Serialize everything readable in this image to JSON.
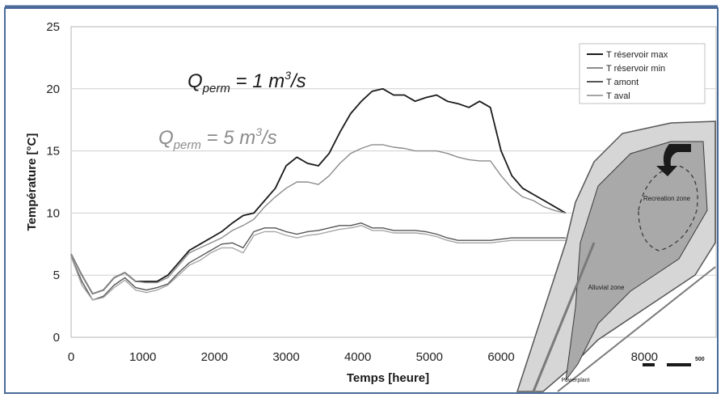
{
  "chart_data": {
    "type": "line",
    "xlabel": "Temps [heure]",
    "ylabel": "Température [°C]",
    "xlim": [
      0,
      9000
    ],
    "ylim": [
      0,
      25
    ],
    "xticks": [
      0,
      1000,
      2000,
      3000,
      4000,
      5000,
      6000,
      8000
    ],
    "yticks": [
      0,
      5,
      10,
      15,
      20,
      25
    ],
    "grid": "horizontal",
    "legend_position": "top-right",
    "annotations": [
      {
        "base": "Q",
        "sub": "perm",
        "eq": " = 1 m",
        "sup": "3",
        "tail": "/s",
        "color": "#1a1a1a"
      },
      {
        "base": "Q",
        "sub": "perm",
        "eq": " = 5 m",
        "sup": "3",
        "tail": "/s",
        "color": "#8c8c8c"
      }
    ],
    "inset_map": {
      "labels": [
        "Recreation zone",
        "Alluvial zone",
        "Powerplant"
      ],
      "scale_label": "500"
    },
    "series": [
      {
        "name": "T réservoir max",
        "color": "#1a1a1a",
        "x": [
          0,
          150,
          300,
          450,
          600,
          750,
          900,
          1050,
          1200,
          1350,
          1500,
          1650,
          1800,
          1950,
          2100,
          2250,
          2400,
          2550,
          2700,
          2850,
          3000,
          3150,
          3300,
          3450,
          3600,
          3750,
          3900,
          4050,
          4200,
          4350,
          4500,
          4650,
          4800,
          4950,
          5100,
          5250,
          5400,
          5550,
          5700,
          5850,
          6000,
          6150,
          6300,
          6450,
          6600,
          6750,
          6900
        ],
        "y": [
          6.7,
          5.0,
          3.5,
          3.8,
          4.8,
          5.2,
          4.5,
          4.5,
          4.5,
          5.0,
          6.0,
          7.0,
          7.5,
          8.0,
          8.5,
          9.2,
          9.8,
          10.0,
          11.0,
          12.0,
          13.8,
          14.5,
          14.0,
          13.8,
          14.8,
          16.5,
          18.0,
          19.0,
          19.8,
          20.0,
          19.5,
          19.5,
          19.0,
          19.3,
          19.5,
          19.0,
          18.8,
          18.5,
          19.0,
          18.5,
          15.0,
          13.0,
          12.0,
          11.5,
          11.0,
          10.5,
          10.0
        ]
      },
      {
        "name": "T réservoir min",
        "color": "#8c8c8c",
        "x": [
          0,
          150,
          300,
          450,
          600,
          750,
          900,
          1050,
          1200,
          1350,
          1500,
          1650,
          1800,
          1950,
          2100,
          2250,
          2400,
          2550,
          2700,
          2850,
          3000,
          3150,
          3300,
          3450,
          3600,
          3750,
          3900,
          4050,
          4200,
          4350,
          4500,
          4650,
          4800,
          4950,
          5100,
          5250,
          5400,
          5550,
          5700,
          5850,
          6000,
          6150,
          6300,
          6450,
          6600,
          6750,
          6900
        ],
        "y": [
          6.7,
          5.0,
          3.5,
          3.8,
          4.8,
          5.2,
          4.5,
          4.4,
          4.4,
          4.8,
          5.8,
          6.8,
          7.2,
          7.6,
          8.0,
          8.6,
          9.0,
          9.5,
          10.5,
          11.3,
          12.0,
          12.5,
          12.5,
          12.3,
          13.0,
          14.0,
          14.8,
          15.2,
          15.5,
          15.5,
          15.3,
          15.2,
          15.0,
          15.0,
          15.0,
          14.8,
          14.5,
          14.3,
          14.2,
          14.2,
          13.0,
          12.0,
          11.3,
          11.0,
          10.5,
          10.2,
          10.0
        ]
      },
      {
        "name": "T amont",
        "color": "#555555",
        "x": [
          0,
          150,
          300,
          450,
          600,
          750,
          900,
          1050,
          1200,
          1350,
          1500,
          1650,
          1800,
          1950,
          2100,
          2250,
          2400,
          2550,
          2700,
          2850,
          3000,
          3150,
          3300,
          3450,
          3600,
          3750,
          3900,
          4050,
          4200,
          4350,
          4500,
          4650,
          4800,
          4950,
          5100,
          5250,
          5400,
          5550,
          5700,
          5850,
          6000,
          6150,
          6300,
          6450,
          6600,
          6750,
          6900
        ],
        "y": [
          6.5,
          4.5,
          3.0,
          3.3,
          4.2,
          4.8,
          4.0,
          3.8,
          4.0,
          4.3,
          5.2,
          6.0,
          6.5,
          7.0,
          7.5,
          7.6,
          7.2,
          8.5,
          8.8,
          8.8,
          8.5,
          8.3,
          8.5,
          8.6,
          8.8,
          9.0,
          9.0,
          9.2,
          8.8,
          8.8,
          8.6,
          8.6,
          8.6,
          8.5,
          8.3,
          8.0,
          7.8,
          7.8,
          7.8,
          7.8,
          7.9,
          8.0,
          8.0,
          8.0,
          8.0,
          8.0,
          8.0
        ]
      },
      {
        "name": "T aval",
        "color": "#a6a6a6",
        "x": [
          0,
          150,
          300,
          450,
          600,
          750,
          900,
          1050,
          1200,
          1350,
          1500,
          1650,
          1800,
          1950,
          2100,
          2250,
          2400,
          2550,
          2700,
          2850,
          3000,
          3150,
          3300,
          3450,
          3600,
          3750,
          3900,
          4050,
          4200,
          4350,
          4500,
          4650,
          4800,
          4950,
          5100,
          5250,
          5400,
          5550,
          5700,
          5850,
          6000,
          6150,
          6300,
          6450,
          6600,
          6750,
          6900
        ],
        "y": [
          6.5,
          4.2,
          3.0,
          3.2,
          4.0,
          4.6,
          3.8,
          3.6,
          3.8,
          4.2,
          5.0,
          5.8,
          6.2,
          6.8,
          7.2,
          7.2,
          6.8,
          8.2,
          8.5,
          8.5,
          8.2,
          8.0,
          8.2,
          8.3,
          8.5,
          8.7,
          8.8,
          9.0,
          8.6,
          8.6,
          8.4,
          8.4,
          8.4,
          8.3,
          8.1,
          7.8,
          7.6,
          7.6,
          7.6,
          7.6,
          7.7,
          7.8,
          7.8,
          7.8,
          7.8,
          7.8,
          7.8
        ]
      }
    ]
  }
}
